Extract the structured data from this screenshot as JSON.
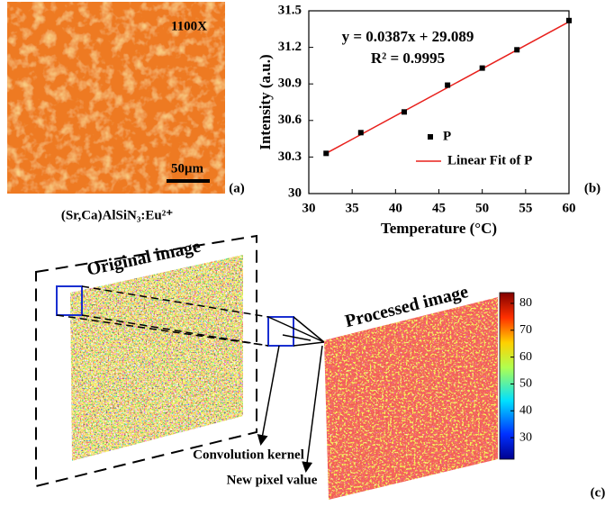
{
  "panel_a": {
    "magnification": "1100X",
    "scale_bar": "50μm",
    "label": "(a)",
    "caption": "(Sr,Ca)AlSiN₃:Eu²⁺"
  },
  "chart_data": {
    "type": "scatter",
    "label": "(b)",
    "x_label": "Temperature (°C)",
    "y_label": "Intensity (a.u.)",
    "annotations": [
      "y = 0.0387x + 29.089",
      "R² = 0.9995"
    ],
    "xlim": [
      30,
      60
    ],
    "xticks": [
      30,
      35,
      40,
      45,
      50,
      55,
      60
    ],
    "ylim": [
      30,
      31.5
    ],
    "yticks": [
      30,
      30.3,
      30.6,
      30.9,
      31.2,
      31.5
    ],
    "series": [
      {
        "name": "P",
        "color": "#000000",
        "x": [
          32,
          36,
          41,
          46,
          50,
          54,
          60
        ],
        "values": [
          30.33,
          30.5,
          30.67,
          30.89,
          31.03,
          31.18,
          31.42
        ]
      },
      {
        "name": "Linear Fit of P",
        "color": "#e8201c",
        "x": [
          32,
          60
        ],
        "values": [
          30.33,
          31.41
        ]
      }
    ]
  },
  "panel_c": {
    "original": "Original image",
    "processed": "Processed image",
    "kernel": "Convolution kernel",
    "pixel": "New pixel value",
    "label": "(c)",
    "colorbar": {
      "lim": [
        22,
        84
      ],
      "ticks": [
        30,
        40,
        50,
        60,
        70,
        80
      ]
    }
  }
}
